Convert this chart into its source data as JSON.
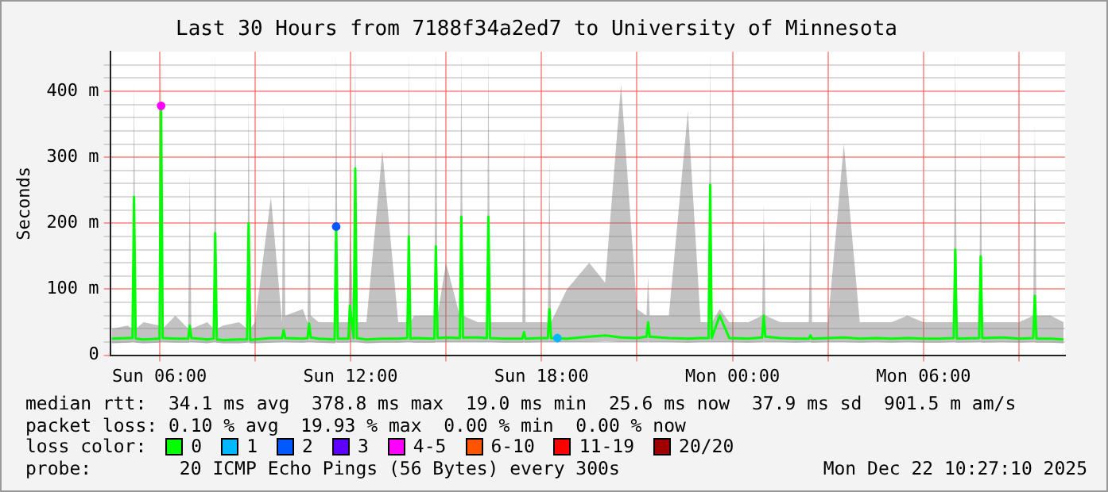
{
  "chart_data": {
    "type": "line",
    "title": "Last 30 Hours from 7188f34a2ed7 to University of Minnesota",
    "ylabel": "Seconds",
    "legend_title": "loss color:",
    "legend": "bottom",
    "grid": true,
    "marker": "none",
    "xlim": [
      "2025-12-21T04:27",
      "2025-12-22T10:27"
    ],
    "xticks": [
      {
        "value": "2025-12-21T06:00",
        "label": "Sun 06:00"
      },
      {
        "value": "2025-12-21T09:00",
        "label": null
      },
      {
        "value": "2025-12-21T12:00",
        "label": "Sun 12:00"
      },
      {
        "value": "2025-12-21T15:00",
        "label": null
      },
      {
        "value": "2025-12-21T18:00",
        "label": "Sun 18:00"
      },
      {
        "value": "2025-12-21T21:00",
        "label": null
      },
      {
        "value": "2025-12-22T00:00",
        "label": "Mon 00:00"
      },
      {
        "value": "2025-12-22T03:00",
        "label": null
      },
      {
        "value": "2025-12-22T06:00",
        "label": "Mon 06:00"
      },
      {
        "value": "2025-12-22T09:00",
        "label": null
      }
    ],
    "ylim": [
      0,
      460
    ],
    "yticks": [
      0,
      {
        "value": 20,
        "label": null
      },
      {
        "value": 40,
        "label": null
      },
      {
        "value": 60,
        "label": null
      },
      {
        "value": 80,
        "label": null
      },
      {
        "value": 100,
        "label": "100 m"
      },
      {
        "value": 120,
        "label": null
      },
      {
        "value": 140,
        "label": null
      },
      {
        "value": 160,
        "label": null
      },
      {
        "value": 180,
        "label": null
      },
      {
        "value": 200,
        "label": "200 m"
      },
      {
        "value": 220,
        "label": null
      },
      {
        "value": 240,
        "label": null
      },
      {
        "value": 260,
        "label": null
      },
      {
        "value": 280,
        "label": null
      },
      {
        "value": 300,
        "label": "300 m"
      },
      {
        "value": 320,
        "label": null
      },
      {
        "value": 340,
        "label": null
      },
      {
        "value": 360,
        "label": null
      },
      {
        "value": 380,
        "label": null
      },
      {
        "value": 400,
        "label": "400 m"
      },
      {
        "value": 420,
        "label": null
      },
      {
        "value": 440,
        "label": null
      }
    ],
    "series": [
      {
        "name": "0",
        "type": "line",
        "color": "#00ff00",
        "x": [
          "2025-12-21T04:30",
          "2025-12-21T05:00",
          "2025-12-21T05:09",
          "2025-12-21T05:12",
          "2025-12-21T05:15",
          "2025-12-21T05:30",
          "2025-12-21T06:00",
          "2025-12-21T06:03",
          "2025-12-21T06:06",
          "2025-12-21T06:30",
          "2025-12-21T06:54",
          "2025-12-21T06:57",
          "2025-12-21T07:00",
          "2025-12-21T07:30",
          "2025-12-21T07:42",
          "2025-12-21T07:45",
          "2025-12-21T07:48",
          "2025-12-21T08:00",
          "2025-12-21T08:30",
          "2025-12-21T08:45",
          "2025-12-21T08:48",
          "2025-12-21T08:51",
          "2025-12-21T09:00",
          "2025-12-21T09:30",
          "2025-12-21T09:51",
          "2025-12-21T09:54",
          "2025-12-21T09:57",
          "2025-12-21T10:30",
          "2025-12-21T10:39",
          "2025-12-21T10:42",
          "2025-12-21T10:45",
          "2025-12-21T11:00",
          "2025-12-21T11:30",
          "2025-12-21T11:33",
          "2025-12-21T11:36",
          "2025-12-21T11:56",
          "2025-12-21T11:59",
          "2025-12-21T12:06",
          "2025-12-21T12:09",
          "2025-12-21T12:12",
          "2025-12-21T12:30",
          "2025-12-21T13:00",
          "2025-12-21T13:30",
          "2025-12-21T13:47",
          "2025-12-21T13:50",
          "2025-12-21T13:53",
          "2025-12-21T14:00",
          "2025-12-21T14:38",
          "2025-12-21T14:41",
          "2025-12-21T14:44",
          "2025-12-21T15:00",
          "2025-12-21T15:26",
          "2025-12-21T15:29",
          "2025-12-21T15:32",
          "2025-12-21T16:00",
          "2025-12-21T16:17",
          "2025-12-21T16:20",
          "2025-12-21T16:23",
          "2025-12-21T16:48",
          "2025-12-21T17:24",
          "2025-12-21T17:27",
          "2025-12-21T17:30",
          "2025-12-21T18:00",
          "2025-12-21T18:12",
          "2025-12-21T18:15",
          "2025-12-21T18:18",
          "2025-12-21T18:48",
          "2025-12-21T19:30",
          "2025-12-21T20:00",
          "2025-12-21T20:30",
          "2025-12-21T21:00",
          "2025-12-21T21:18",
          "2025-12-21T21:21",
          "2025-12-21T21:24",
          "2025-12-21T22:00",
          "2025-12-21T22:36",
          "2025-12-21T23:00",
          "2025-12-21T23:15",
          "2025-12-21T23:18",
          "2025-12-21T23:21",
          "2025-12-21T23:36",
          "2025-12-21T23:54",
          "2025-12-22T00:30",
          "2025-12-22T00:56",
          "2025-12-22T00:59",
          "2025-12-22T01:02",
          "2025-12-22T01:30",
          "2025-12-22T02:00",
          "2025-12-22T02:24",
          "2025-12-22T02:27",
          "2025-12-22T02:30",
          "2025-12-22T03:00",
          "2025-12-22T03:30",
          "2025-12-22T04:00",
          "2025-12-22T04:30",
          "2025-12-22T05:00",
          "2025-12-22T05:30",
          "2025-12-22T06:00",
          "2025-12-22T06:30",
          "2025-12-22T06:57",
          "2025-12-22T07:00",
          "2025-12-22T07:03",
          "2025-12-22T07:45",
          "2025-12-22T07:48",
          "2025-12-22T07:51",
          "2025-12-22T08:30",
          "2025-12-22T09:00",
          "2025-12-22T09:27",
          "2025-12-22T09:30",
          "2025-12-22T09:33",
          "2025-12-22T10:00",
          "2025-12-22T10:24"
        ],
        "values": [
          25,
          26,
          26,
          240,
          25,
          24,
          25,
          378,
          26,
          25,
          25,
          45,
          26,
          24,
          25,
          185,
          24,
          23,
          24,
          24,
          200,
          23,
          24,
          26,
          26,
          38,
          26,
          25,
          26,
          48,
          27,
          25,
          24,
          195,
          25,
          25,
          75,
          26,
          283,
          26,
          24,
          25,
          25,
          26,
          180,
          25,
          26,
          25,
          165,
          26,
          27,
          26,
          210,
          27,
          27,
          26,
          210,
          26,
          25,
          25,
          35,
          25,
          26,
          26,
          70,
          26,
          25,
          28,
          30,
          27,
          26,
          28,
          50,
          28,
          26,
          25,
          26,
          26,
          258,
          26,
          60,
          26,
          25,
          27,
          60,
          28,
          26,
          25,
          25,
          30,
          25,
          26,
          27,
          25,
          26,
          25,
          26,
          25,
          25,
          26,
          160,
          25,
          26,
          150,
          26,
          27,
          25,
          26,
          90,
          25,
          25,
          24
        ],
        "lower": [
          18,
          19,
          20,
          20,
          19,
          18,
          19,
          20,
          20,
          19,
          19,
          20,
          20,
          18,
          20,
          20,
          19,
          18,
          18,
          19,
          20,
          18,
          18,
          19,
          20,
          20,
          20,
          19,
          20,
          20,
          20,
          19,
          18,
          20,
          19,
          19,
          20,
          20,
          20,
          20,
          18,
          19,
          19,
          20,
          20,
          20,
          19,
          19,
          20,
          20,
          20,
          20,
          20,
          20,
          20,
          20,
          20,
          20,
          19,
          19,
          20,
          19,
          20,
          20,
          20,
          20,
          20,
          20,
          21,
          20,
          20,
          20,
          21,
          20,
          20,
          19,
          20,
          20,
          20,
          20,
          20,
          20,
          19,
          20,
          21,
          20,
          20,
          19,
          20,
          20,
          19,
          20,
          20,
          19,
          20,
          19,
          20,
          19,
          19,
          20,
          20,
          19,
          20,
          20,
          19,
          20,
          19,
          20,
          20,
          19,
          19,
          18
        ],
        "upper": [
          40,
          45,
          40,
          415,
          40,
          50,
          45,
          460,
          40,
          60,
          40,
          280,
          40,
          50,
          40,
          460,
          40,
          45,
          50,
          40,
          390,
          40,
          50,
          240,
          50,
          380,
          60,
          70,
          50,
          260,
          60,
          50,
          50,
          460,
          50,
          50,
          200,
          50,
          460,
          50,
          50,
          310,
          50,
          50,
          460,
          50,
          60,
          60,
          460,
          60,
          140,
          60,
          460,
          60,
          50,
          50,
          460,
          50,
          50,
          50,
          340,
          50,
          50,
          50,
          300,
          50,
          100,
          140,
          110,
          410,
          70,
          60,
          120,
          60,
          60,
          370,
          50,
          50,
          460,
          50,
          70,
          50,
          50,
          60,
          230,
          60,
          50,
          50,
          50,
          240,
          50,
          50,
          320,
          50,
          50,
          50,
          60,
          50,
          50,
          50,
          460,
          50,
          50,
          340,
          50,
          50,
          50,
          60,
          350,
          60,
          60,
          50
        ]
      },
      {
        "name": "1",
        "type": "scatter",
        "marker": "circle",
        "color": "#00b8ff",
        "x": [
          "2025-12-21T18:30"
        ],
        "values": [
          26
        ]
      },
      {
        "name": "2",
        "type": "scatter",
        "marker": "circle",
        "color": "#0059ff",
        "x": [
          "2025-12-21T11:33"
        ],
        "values": [
          195
        ]
      },
      {
        "name": "3",
        "type": "scatter",
        "marker": "circle",
        "color": "#5e00ff"
      },
      {
        "name": "4-5",
        "type": "scatter",
        "marker": "circle",
        "color": "#ff00ff",
        "x": [
          "2025-12-21T06:03"
        ],
        "values": [
          378
        ]
      },
      {
        "name": "6-10",
        "type": "scatter",
        "marker": "circle",
        "color": "#ff5500"
      },
      {
        "name": "11-19",
        "type": "scatter",
        "marker": "circle",
        "color": "#ff0000"
      },
      {
        "name": "20/20",
        "type": "scatter",
        "marker": "circle",
        "color": "#a10000"
      }
    ],
    "annotations": [
      "median rtt:  34.1 ms avg  378.8 ms max  19.0 ms min  25.6 ms now  37.9 ms sd  901.5 m am/s",
      "packet loss: 0.10 % avg  19.93 % max  0.00 % min  0.00 % now",
      "probe:        20 ICMP Echo Pings (56 Bytes) every 300s",
      "Mon Dec 22 10:27:10 2025"
    ]
  }
}
